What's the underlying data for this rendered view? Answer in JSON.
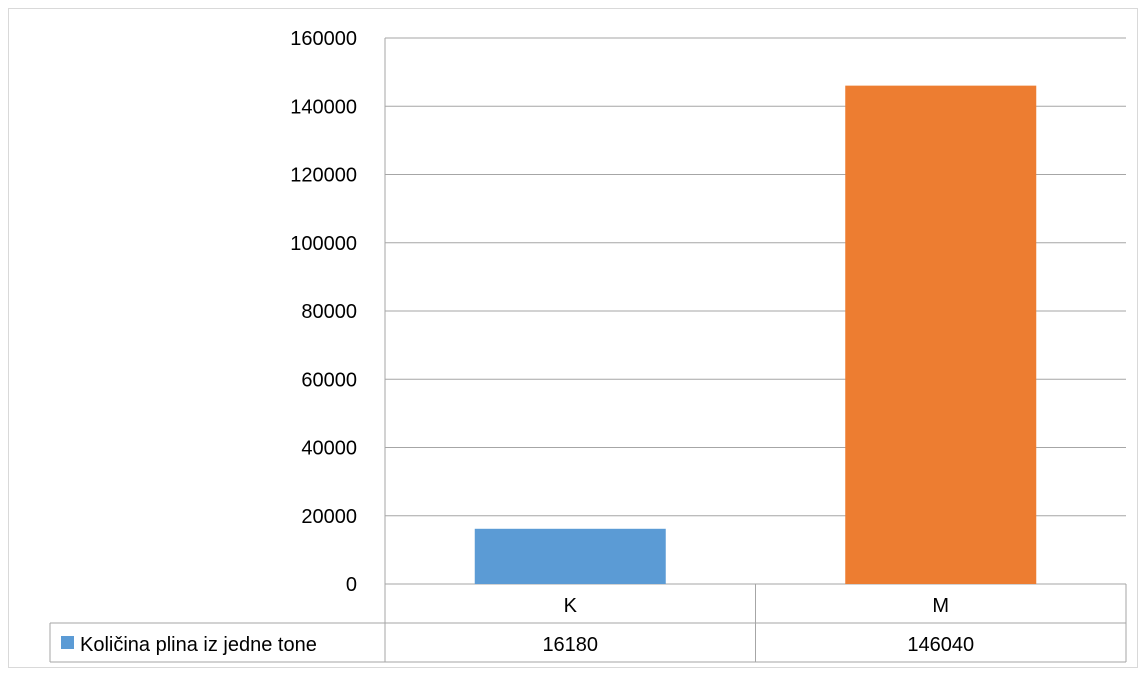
{
  "chart_data": {
    "type": "bar",
    "categories": [
      "K",
      "M"
    ],
    "series": [
      {
        "name": "Količina plina iz jedne tone",
        "values": [
          16180,
          146040
        ],
        "colors": [
          "#5B9BD5",
          "#ED7D31"
        ]
      }
    ],
    "ylim": [
      0,
      160000
    ],
    "yticks": [
      0,
      20000,
      40000,
      60000,
      80000,
      100000,
      120000,
      140000,
      160000
    ],
    "grid": true,
    "data_table": true,
    "legend_placement": "data-table-row",
    "legend_key_color": "#5B9BD5"
  }
}
